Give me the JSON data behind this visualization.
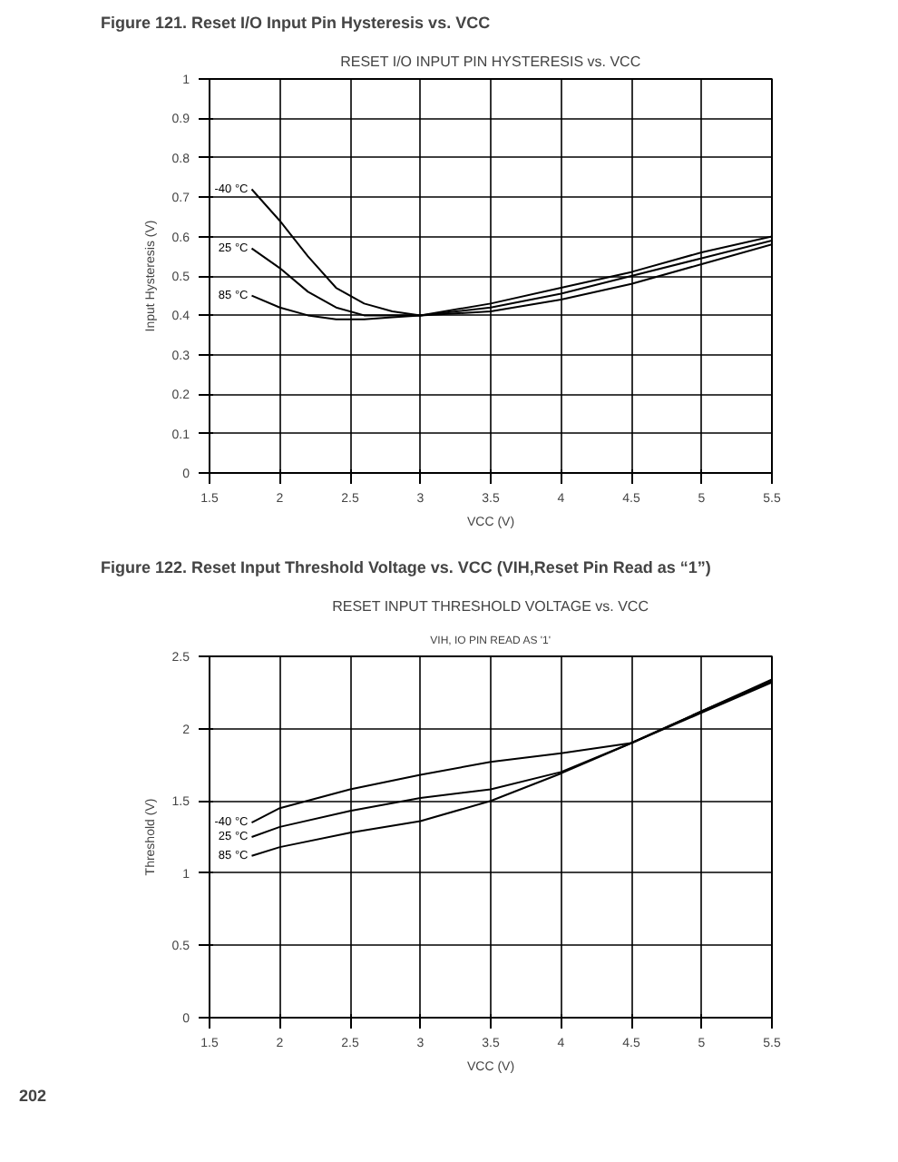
{
  "chart_data": [
    {
      "type": "line",
      "title": "Figure 121.  Reset I/O Input Pin Hysteresis vs. VCC",
      "subtitle": "RESET I/O INPUT PIN HYSTERESIS vs. VCC",
      "xlabel": "VCC (V)",
      "ylabel": "Input Hysteresis (V)",
      "x": [
        1.8,
        2.0,
        2.2,
        2.4,
        2.6,
        2.8,
        3.0,
        3.5,
        4.0,
        4.5,
        5.0,
        5.5
      ],
      "series": [
        {
          "name": "-40 °C",
          "color": "#000000",
          "values": [
            0.72,
            0.64,
            0.55,
            0.47,
            0.43,
            0.41,
            0.4,
            0.43,
            0.47,
            0.51,
            0.56,
            0.6
          ]
        },
        {
          "name": "25 °C",
          "color": "#000000",
          "values": [
            0.57,
            0.52,
            0.46,
            0.42,
            0.4,
            0.4,
            0.4,
            0.42,
            0.455,
            0.5,
            0.545,
            0.59
          ]
        },
        {
          "name": "85 °C",
          "color": "#000000",
          "values": [
            0.45,
            0.42,
            0.4,
            0.39,
            0.39,
            0.395,
            0.4,
            0.41,
            0.44,
            0.48,
            0.53,
            0.58
          ]
        }
      ],
      "xlim": [
        1.5,
        5.5
      ],
      "xticks": [
        1.5,
        2,
        2.5,
        3,
        3.5,
        4,
        4.5,
        5,
        5.5
      ],
      "ylim": [
        0,
        1
      ],
      "yticks": [
        0,
        0.1,
        0.2,
        0.3,
        0.4,
        0.5,
        0.6,
        0.7,
        0.8,
        0.9,
        1
      ],
      "grid": true,
      "legend": "left",
      "marker": "none",
      "line_style": "solid"
    },
    {
      "type": "line",
      "title": "Figure 122.  Reset Input Threshold Voltage vs. VCC (VIH,Reset Pin Read as “1”)",
      "subtitle": "RESET INPUT THRESHOLD VOLTAGE vs. VCC",
      "xlabel": "VCC (V)",
      "ylabel": "Threshold (V)",
      "annotations": [
        "VIH, IO PIN READ AS '1'",
        "202"
      ],
      "x": [
        1.8,
        2.0,
        2.5,
        3.0,
        3.5,
        4.0,
        4.5,
        5.0,
        5.5
      ],
      "series": [
        {
          "name": "-40 °C",
          "color": "#000000",
          "values": [
            1.35,
            1.45,
            1.58,
            1.68,
            1.77,
            1.83,
            1.9,
            2.12,
            2.34
          ]
        },
        {
          "name": "25 °C",
          "color": "#000000",
          "values": [
            1.25,
            1.32,
            1.43,
            1.52,
            1.58,
            1.7,
            1.9,
            2.12,
            2.33
          ]
        },
        {
          "name": "85 °C",
          "color": "#000000",
          "values": [
            1.12,
            1.18,
            1.28,
            1.36,
            1.5,
            1.69,
            1.9,
            2.11,
            2.32
          ]
        }
      ],
      "xlim": [
        1.5,
        5.5
      ],
      "xticks": [
        1.5,
        2,
        2.5,
        3,
        3.5,
        4,
        4.5,
        5,
        5.5
      ],
      "ylim": [
        0,
        2.5
      ],
      "yticks": [
        0,
        0.5,
        1,
        1.5,
        2,
        2.5
      ],
      "grid": true,
      "legend": "left",
      "marker": "none",
      "line_style": "solid"
    }
  ]
}
